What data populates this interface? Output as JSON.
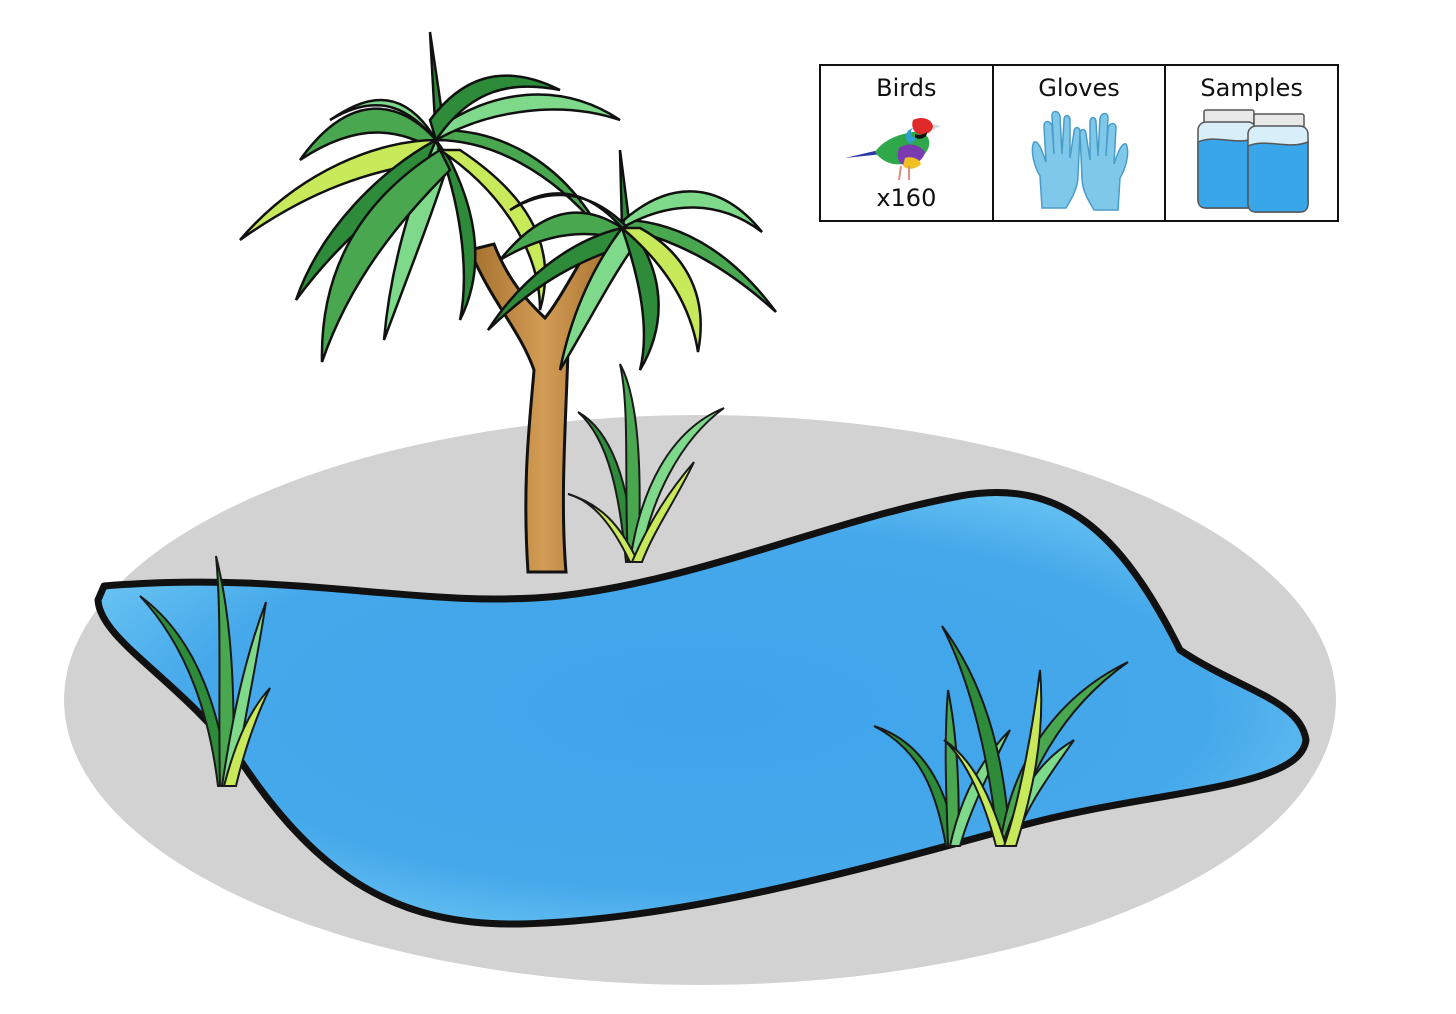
{
  "legend": {
    "items": [
      {
        "label": "Birds",
        "count": "x160",
        "icon": "bird-icon"
      },
      {
        "label": "Gloves",
        "count": "",
        "icon": "gloves-icon"
      },
      {
        "label": "Samples",
        "count": "",
        "icon": "sample-jars-icon"
      }
    ]
  },
  "scene": {
    "elements": [
      "ground-ellipse",
      "pond",
      "palm-tree",
      "reeds"
    ],
    "colors": {
      "ground": "#d2d2d2",
      "water": "#45a8ea",
      "water_highlight": "#6fc6f2",
      "leaf_dark": "#2e8b3a",
      "leaf_light": "#7fd98a",
      "leaf_yellow": "#c8ea5a",
      "trunk": "#c8924a"
    }
  }
}
